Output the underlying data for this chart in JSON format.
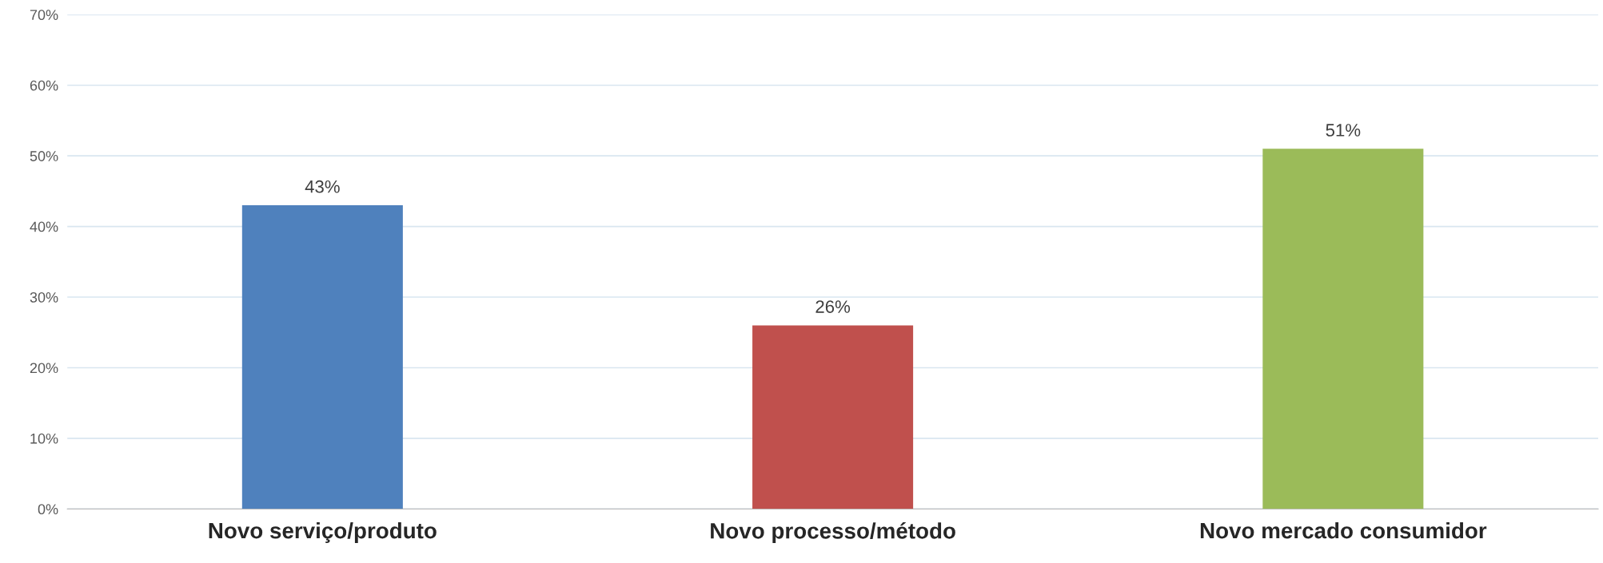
{
  "chart_data": {
    "type": "bar",
    "categories": [
      "Novo serviço/produto",
      "Novo processo/método",
      "Novo mercado consumidor"
    ],
    "values": [
      43,
      26,
      51
    ],
    "colors": [
      "#4f81bd",
      "#c0504d",
      "#9bbb59"
    ],
    "value_labels": [
      "43%",
      "26%",
      "51%"
    ],
    "ylim": [
      0,
      70
    ],
    "yticks": [
      {
        "value": 0,
        "label": "0%"
      },
      {
        "value": 10,
        "label": "10%"
      },
      {
        "value": 20,
        "label": "20%"
      },
      {
        "value": 30,
        "label": "30%"
      },
      {
        "value": 40,
        "label": "40%"
      },
      {
        "value": 50,
        "label": "50%"
      },
      {
        "value": 60,
        "label": "60%"
      },
      {
        "value": 70,
        "label": "70%"
      }
    ],
    "grid": "y"
  }
}
